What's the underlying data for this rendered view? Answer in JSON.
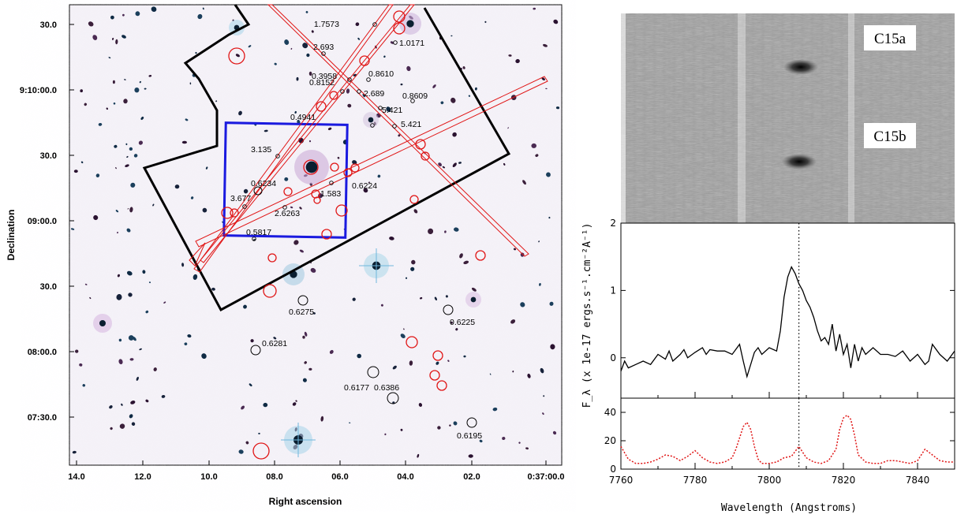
{
  "image_panel": {
    "ra_ticks": [
      "14.0",
      "12.0",
      "10.0",
      "08.0",
      "06.0",
      "04.0",
      "02.0",
      "0:37:00.0"
    ],
    "dec_ticks": [
      "30.0",
      "9:10:00.0",
      "30.0",
      "09:00.0",
      "30.0",
      "08:00.0",
      "07:30.0"
    ],
    "xlabel": "Right ascension",
    "ylabel": "Declination",
    "redshift_labels": [
      "1.7573",
      "1.0171",
      "2.693",
      "0.3958",
      "0.8610",
      "0.8152",
      "2.689",
      "0.8609",
      "5.421",
      "0.4941",
      "5.421",
      "3.135",
      "0.6234",
      "1.583",
      "0.6224",
      "3.677",
      "2.6263",
      "0.5817",
      "0.6275",
      "0.6225",
      "0.6281",
      "0.6177",
      "0.6386",
      "0.6195"
    ],
    "colors": {
      "fov_outline": "#000000",
      "box": "#1a1adf",
      "slits": "#e01515",
      "circles_red": "#e01515",
      "circles_black": "#000000"
    }
  },
  "spectrum_panel": {
    "tags": [
      "C15a",
      "C15b"
    ],
    "chart_data": [
      {
        "type": "line",
        "title": "",
        "ylabel": "F_λ (x 1e-17 ergs.s⁻¹.cm⁻²A⁻¹)",
        "xlabel": "",
        "xlim": [
          7760,
          7850
        ],
        "ylim": [
          -0.6,
          2.0
        ],
        "yticks": [
          "2",
          "1",
          "0"
        ],
        "marker_x": 7808,
        "series": [
          {
            "x": [
              7760,
              7761,
              7762,
              7764,
              7766,
              7768,
              7770,
              7772,
              7773,
              7774,
              7776,
              7777,
              7778,
              7780,
              7782,
              7783,
              7784,
              7786,
              7788,
              7790,
              7792,
              7793,
              7794,
              7796,
              7797,
              7798,
              7800,
              7802,
              7803,
              7804,
              7805,
              7806,
              7807,
              7808,
              7809,
              7810,
              7811,
              7812,
              7813,
              7814,
              7815,
              7816,
              7817,
              7818,
              7819,
              7820,
              7821,
              7822,
              7823,
              7824,
              7825,
              7826,
              7828,
              7830,
              7832,
              7834,
              7836,
              7838,
              7840,
              7842,
              7843,
              7844,
              7846,
              7848,
              7850
            ],
            "y": [
              -0.2,
              -0.05,
              -0.15,
              -0.1,
              -0.05,
              -0.1,
              0.05,
              -0.02,
              0.1,
              -0.05,
              0.05,
              0.12,
              0.0,
              0.08,
              0.15,
              0.05,
              0.12,
              0.1,
              0.1,
              0.05,
              0.2,
              -0.05,
              -0.28,
              0.08,
              0.15,
              0.05,
              0.15,
              0.1,
              0.4,
              0.9,
              1.2,
              1.35,
              1.25,
              1.1,
              1.0,
              0.85,
              0.75,
              0.6,
              0.4,
              0.25,
              0.3,
              0.2,
              0.5,
              0.1,
              0.35,
              0.05,
              0.2,
              -0.15,
              0.2,
              -0.05,
              0.15,
              0.05,
              0.15,
              0.05,
              0.05,
              0.02,
              0.1,
              -0.05,
              0.05,
              -0.1,
              -0.05,
              0.2,
              0.05,
              -0.05,
              0.1
            ]
          }
        ]
      },
      {
        "type": "line",
        "title": "",
        "xlabel": "Wavelength (Angstroms)",
        "ylabel": "",
        "xlim": [
          7760,
          7850
        ],
        "ylim": [
          0,
          50
        ],
        "yticks": [
          "40",
          "20",
          "0"
        ],
        "xticks": [
          "7760",
          "7780",
          "7800",
          "7820",
          "7840"
        ],
        "marker_x": 7808,
        "series": [
          {
            "x": [
              7760,
              7762,
              7764,
              7766,
              7768,
              7770,
              7772,
              7774,
              7776,
              7778,
              7780,
              7782,
              7784,
              7786,
              7788,
              7790,
              7791,
              7792,
              7793,
              7794,
              7795,
              7796,
              7797,
              7798,
              7800,
              7802,
              7804,
              7806,
              7808,
              7810,
              7812,
              7814,
              7816,
              7818,
              7819,
              7820,
              7821,
              7822,
              7823,
              7824,
              7826,
              7828,
              7830,
              7832,
              7834,
              7836,
              7838,
              7840,
              7842,
              7844,
              7846,
              7848,
              7850
            ],
            "y": [
              16,
              7,
              4,
              4,
              5,
              7,
              10,
              9,
              6,
              9,
              13,
              8,
              5,
              4,
              5,
              8,
              14,
              22,
              30,
              33,
              28,
              16,
              7,
              4,
              4,
              5,
              8,
              9,
              16,
              8,
              5,
              4,
              6,
              14,
              28,
              36,
              38,
              35,
              24,
              10,
              5,
              4,
              4,
              6,
              6,
              5,
              4,
              6,
              14,
              10,
              6,
              5,
              5
            ]
          }
        ]
      }
    ]
  }
}
